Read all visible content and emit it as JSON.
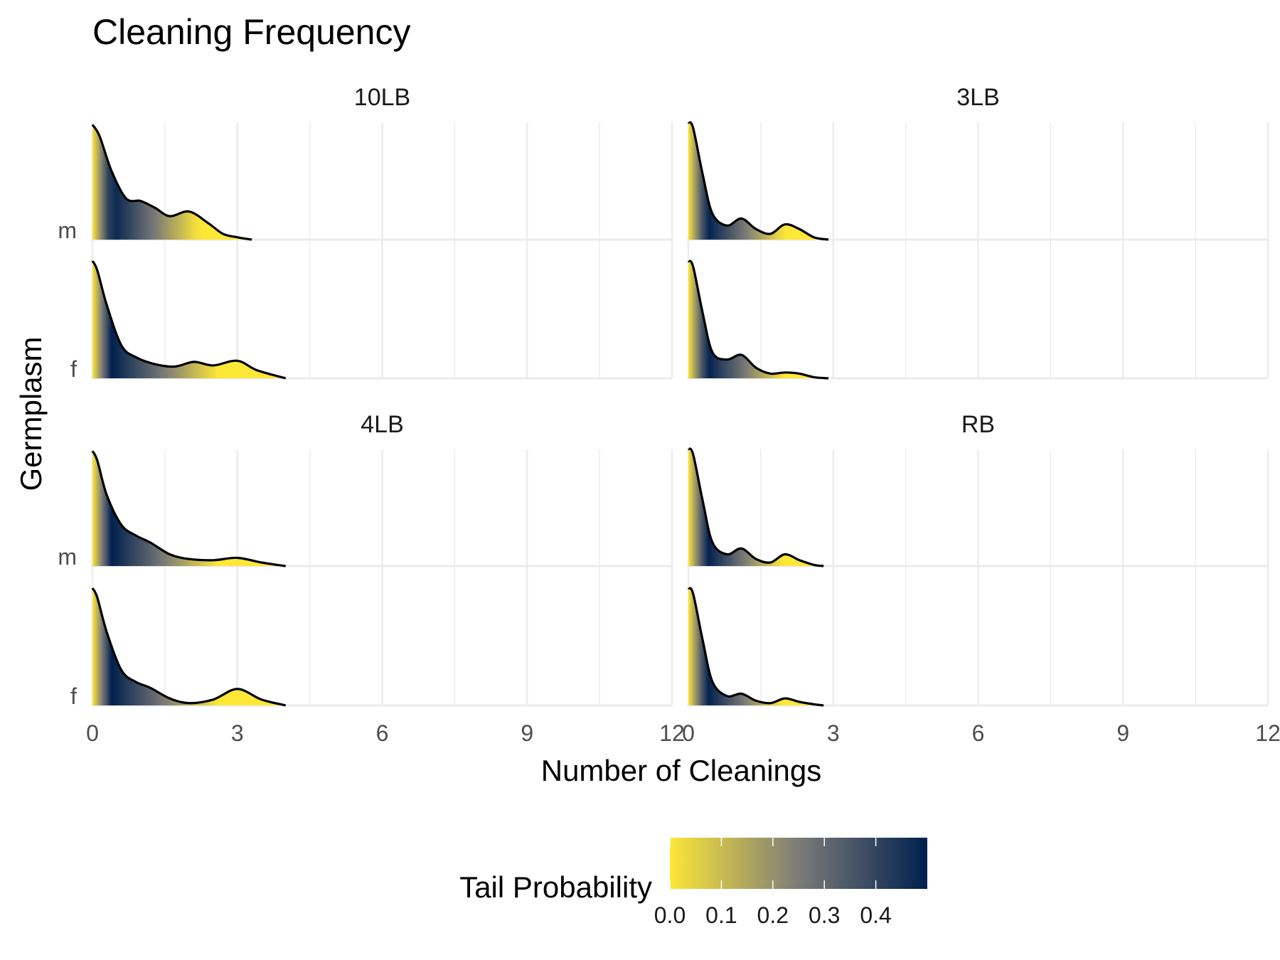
{
  "chart_data": {
    "type": "ridgeline",
    "title": "Cleaning Frequency",
    "xlabel": "Number of Cleanings",
    "ylabel": "Germplasm",
    "xlim": [
      0,
      12
    ],
    "xticks": [
      "0",
      "3",
      "6",
      "9",
      "12"
    ],
    "grid": true,
    "legend": {
      "title": "Tail Probability",
      "position": "bottom",
      "ticks": [
        "0.0",
        "0.1",
        "0.2",
        "0.3",
        "0.4"
      ],
      "range": [
        0,
        0.5
      ],
      "low_color": "#fde737",
      "high_color": "#00204d",
      "mid_color": "#7c7b78"
    },
    "panels": [
      {
        "label": "10LB",
        "groups": [
          {
            "name": "m",
            "x": [
              0,
              0.15,
              0.4,
              0.7,
              1.0,
              1.3,
              1.6,
              2.0,
              2.4,
              2.7,
              3.0,
              3.3
            ],
            "density": [
              0.98,
              0.88,
              0.58,
              0.35,
              0.33,
              0.27,
              0.2,
              0.24,
              0.14,
              0.05,
              0.02,
              0.0
            ]
          },
          {
            "name": "f",
            "x": [
              0,
              0.1,
              0.3,
              0.6,
              0.9,
              1.3,
              1.7,
              2.1,
              2.5,
              3.0,
              3.4,
              4.0
            ],
            "density": [
              1.0,
              0.92,
              0.62,
              0.28,
              0.18,
              0.12,
              0.1,
              0.14,
              0.11,
              0.15,
              0.07,
              0.0
            ]
          }
        ]
      },
      {
        "label": "3LB",
        "groups": [
          {
            "name": "m",
            "x": [
              0,
              0.1,
              0.3,
              0.5,
              0.8,
              1.1,
              1.4,
              1.7,
              2.0,
              2.3,
              2.6,
              2.9
            ],
            "density": [
              1.0,
              0.95,
              0.55,
              0.22,
              0.12,
              0.18,
              0.09,
              0.05,
              0.13,
              0.09,
              0.02,
              0.0
            ]
          },
          {
            "name": "f",
            "x": [
              0,
              0.1,
              0.3,
              0.5,
              0.8,
              1.1,
              1.4,
              1.7,
              2.0,
              2.3,
              2.6,
              2.9
            ],
            "density": [
              1.0,
              0.95,
              0.55,
              0.22,
              0.16,
              0.2,
              0.09,
              0.04,
              0.05,
              0.04,
              0.01,
              0.0
            ]
          }
        ]
      },
      {
        "label": "4LB",
        "groups": [
          {
            "name": "m",
            "x": [
              0,
              0.1,
              0.3,
              0.6,
              0.9,
              1.2,
              1.6,
              2.0,
              2.5,
              3.0,
              3.5,
              4.0
            ],
            "density": [
              0.98,
              0.9,
              0.6,
              0.35,
              0.26,
              0.2,
              0.1,
              0.06,
              0.05,
              0.07,
              0.03,
              0.0
            ]
          },
          {
            "name": "f",
            "x": [
              0,
              0.1,
              0.3,
              0.6,
              0.9,
              1.2,
              1.6,
              2.0,
              2.5,
              3.0,
              3.5,
              4.0
            ],
            "density": [
              1.0,
              0.92,
              0.62,
              0.3,
              0.2,
              0.15,
              0.06,
              0.02,
              0.05,
              0.14,
              0.05,
              0.0
            ]
          }
        ]
      },
      {
        "label": "RB",
        "groups": [
          {
            "name": "m",
            "x": [
              0,
              0.1,
              0.3,
              0.5,
              0.8,
              1.1,
              1.4,
              1.7,
              2.0,
              2.3,
              2.6,
              2.8
            ],
            "density": [
              1.0,
              0.95,
              0.55,
              0.2,
              0.1,
              0.15,
              0.06,
              0.03,
              0.1,
              0.05,
              0.01,
              0.0
            ]
          },
          {
            "name": "f",
            "x": [
              0,
              0.1,
              0.3,
              0.5,
              0.8,
              1.1,
              1.4,
              1.7,
              2.0,
              2.3,
              2.6,
              2.8
            ],
            "density": [
              1.0,
              0.95,
              0.55,
              0.2,
              0.08,
              0.1,
              0.04,
              0.02,
              0.06,
              0.03,
              0.01,
              0.0
            ]
          }
        ]
      }
    ]
  }
}
